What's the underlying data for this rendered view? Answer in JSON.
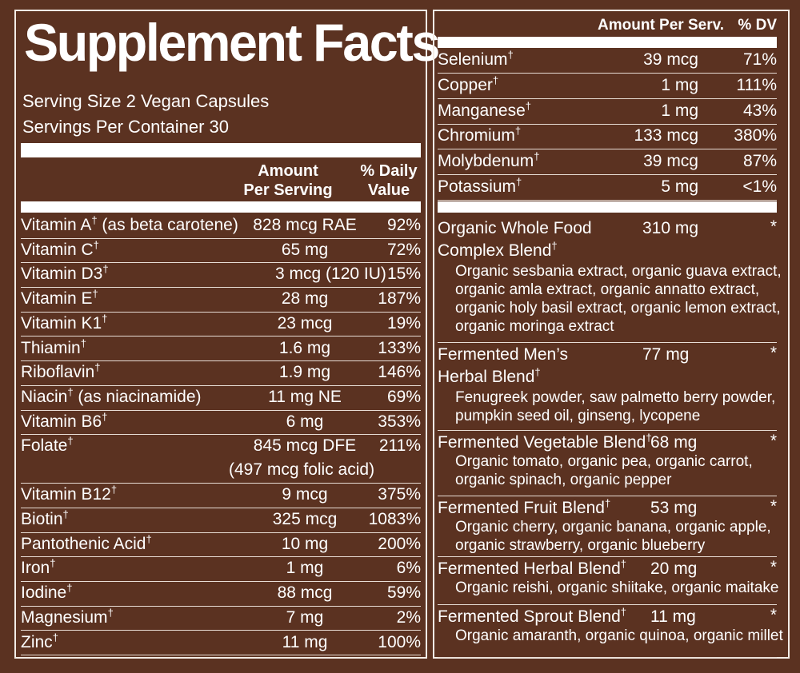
{
  "left": {
    "title": "Supplement Facts",
    "serving_size": "Serving Size 2 Vegan Capsules",
    "servings_per_container": "Servings Per Container 30",
    "header_amount_line1": "Amount",
    "header_amount_line2": "Per Serving",
    "header_dv_line1": "% Daily",
    "header_dv_line2": "Value",
    "rows": [
      {
        "name": "Vitamin A",
        "mark": "†",
        "note": " (as beta carotene)",
        "amount": "828 mcg RAE",
        "dv": "92%"
      },
      {
        "name": "Vitamin C",
        "mark": "†",
        "note": "",
        "amount": "65 mg",
        "dv": "72%"
      },
      {
        "name": "Vitamin D3",
        "mark": "†",
        "note": "",
        "amount": "3 mcg (120 IU)",
        "dv": "15%"
      },
      {
        "name": "Vitamin E",
        "mark": "†",
        "note": "",
        "amount": "28 mg",
        "dv": "187%"
      },
      {
        "name": "Vitamin K1",
        "mark": "†",
        "note": "",
        "amount": "23 mcg",
        "dv": "19%"
      },
      {
        "name": "Thiamin",
        "mark": "†",
        "note": "",
        "amount": "1.6 mg",
        "dv": "133%"
      },
      {
        "name": "Riboflavin",
        "mark": "†",
        "note": "",
        "amount": "1.9 mg",
        "dv": "146%"
      },
      {
        "name": "Niacin",
        "mark": "†",
        "note": " (as niacinamide)",
        "amount": "11 mg NE",
        "dv": "69%"
      },
      {
        "name": "Vitamin B6",
        "mark": "†",
        "note": "",
        "amount": "6 mg",
        "dv": "353%"
      },
      {
        "name": "Folate",
        "mark": "†",
        "note": "",
        "amount": "845 mcg DFE",
        "dv": "211%",
        "extra": "(497 mcg folic acid)"
      },
      {
        "name": "Vitamin B12",
        "mark": "†",
        "note": "",
        "amount": "9 mcg",
        "dv": "375%"
      },
      {
        "name": "Biotin",
        "mark": "†",
        "note": "",
        "amount": "325 mcg",
        "dv": "1083%"
      },
      {
        "name": "Pantothenic Acid",
        "mark": "†",
        "note": "",
        "amount": "10 mg",
        "dv": "200%"
      },
      {
        "name": "Iron",
        "mark": "†",
        "note": "",
        "amount": "1 mg",
        "dv": "6%"
      },
      {
        "name": "Iodine",
        "mark": "†",
        "note": "",
        "amount": "88 mcg",
        "dv": "59%"
      },
      {
        "name": "Magnesium",
        "mark": "†",
        "note": "",
        "amount": "7 mg",
        "dv": "2%"
      },
      {
        "name": "Zinc",
        "mark": "†",
        "note": "",
        "amount": "11 mg",
        "dv": "100%"
      }
    ]
  },
  "right": {
    "header_amount": "Amount Per Serv.",
    "header_dv": "% DV",
    "minerals": [
      {
        "name": "Selenium",
        "mark": "†",
        "amount": "39 mcg",
        "dv": "71%"
      },
      {
        "name": "Copper",
        "mark": "†",
        "amount": "1 mg",
        "dv": "111%"
      },
      {
        "name": "Manganese",
        "mark": "†",
        "amount": "1 mg",
        "dv": "43%"
      },
      {
        "name": "Chromium",
        "mark": "†",
        "amount": "133 mcg",
        "dv": "380%"
      },
      {
        "name": "Molybdenum",
        "mark": "†",
        "amount": "39 mcg",
        "dv": "87%"
      },
      {
        "name": "Potassium",
        "mark": "†",
        "amount": "5 mg",
        "dv": "<1%"
      }
    ],
    "blends": [
      {
        "name_lines": [
          "Organic Whole Food",
          "Complex Blend"
        ],
        "mark": "†",
        "amount": "310 mg",
        "dv": "*",
        "ingredients": [
          "Organic sesbania extract, organic guava extract,",
          "organic amla extract, organic annatto extract,",
          "organic holy basil extract, organic lemon extract,",
          "organic moringa extract"
        ]
      },
      {
        "name_lines": [
          "Fermented Men’s",
          "Herbal Blend"
        ],
        "mark": "†",
        "amount": "77 mg",
        "dv": "*",
        "ingredients": [
          "Fenugreek powder, saw palmetto berry powder,",
          "pumpkin seed oil, ginseng, lycopene"
        ]
      },
      {
        "name_lines": [
          "Fermented Vegetable Blend"
        ],
        "mark": "†",
        "amount": "68 mg",
        "dv": "*",
        "ingredients": [
          "Organic tomato, organic pea, organic carrot,",
          "organic spinach, organic pepper"
        ]
      },
      {
        "name_lines": [
          "Fermented Fruit Blend"
        ],
        "mark": "†",
        "amount": "53 mg",
        "dv": "*",
        "ingredients": [
          "Organic cherry, organic banana, organic apple,",
          "organic strawberry, organic blueberry"
        ]
      },
      {
        "name_lines": [
          "Fermented Herbal Blend"
        ],
        "mark": "†",
        "amount": "20 mg",
        "dv": "*",
        "ingredients": [
          "Organic reishi, organic shiitake, organic maitake"
        ]
      },
      {
        "name_lines": [
          "Fermented Sprout Blend"
        ],
        "mark": "†",
        "amount": "11 mg",
        "dv": "*",
        "ingredients": [
          "Organic amaranth, organic quinoa, organic millet"
        ]
      }
    ]
  }
}
